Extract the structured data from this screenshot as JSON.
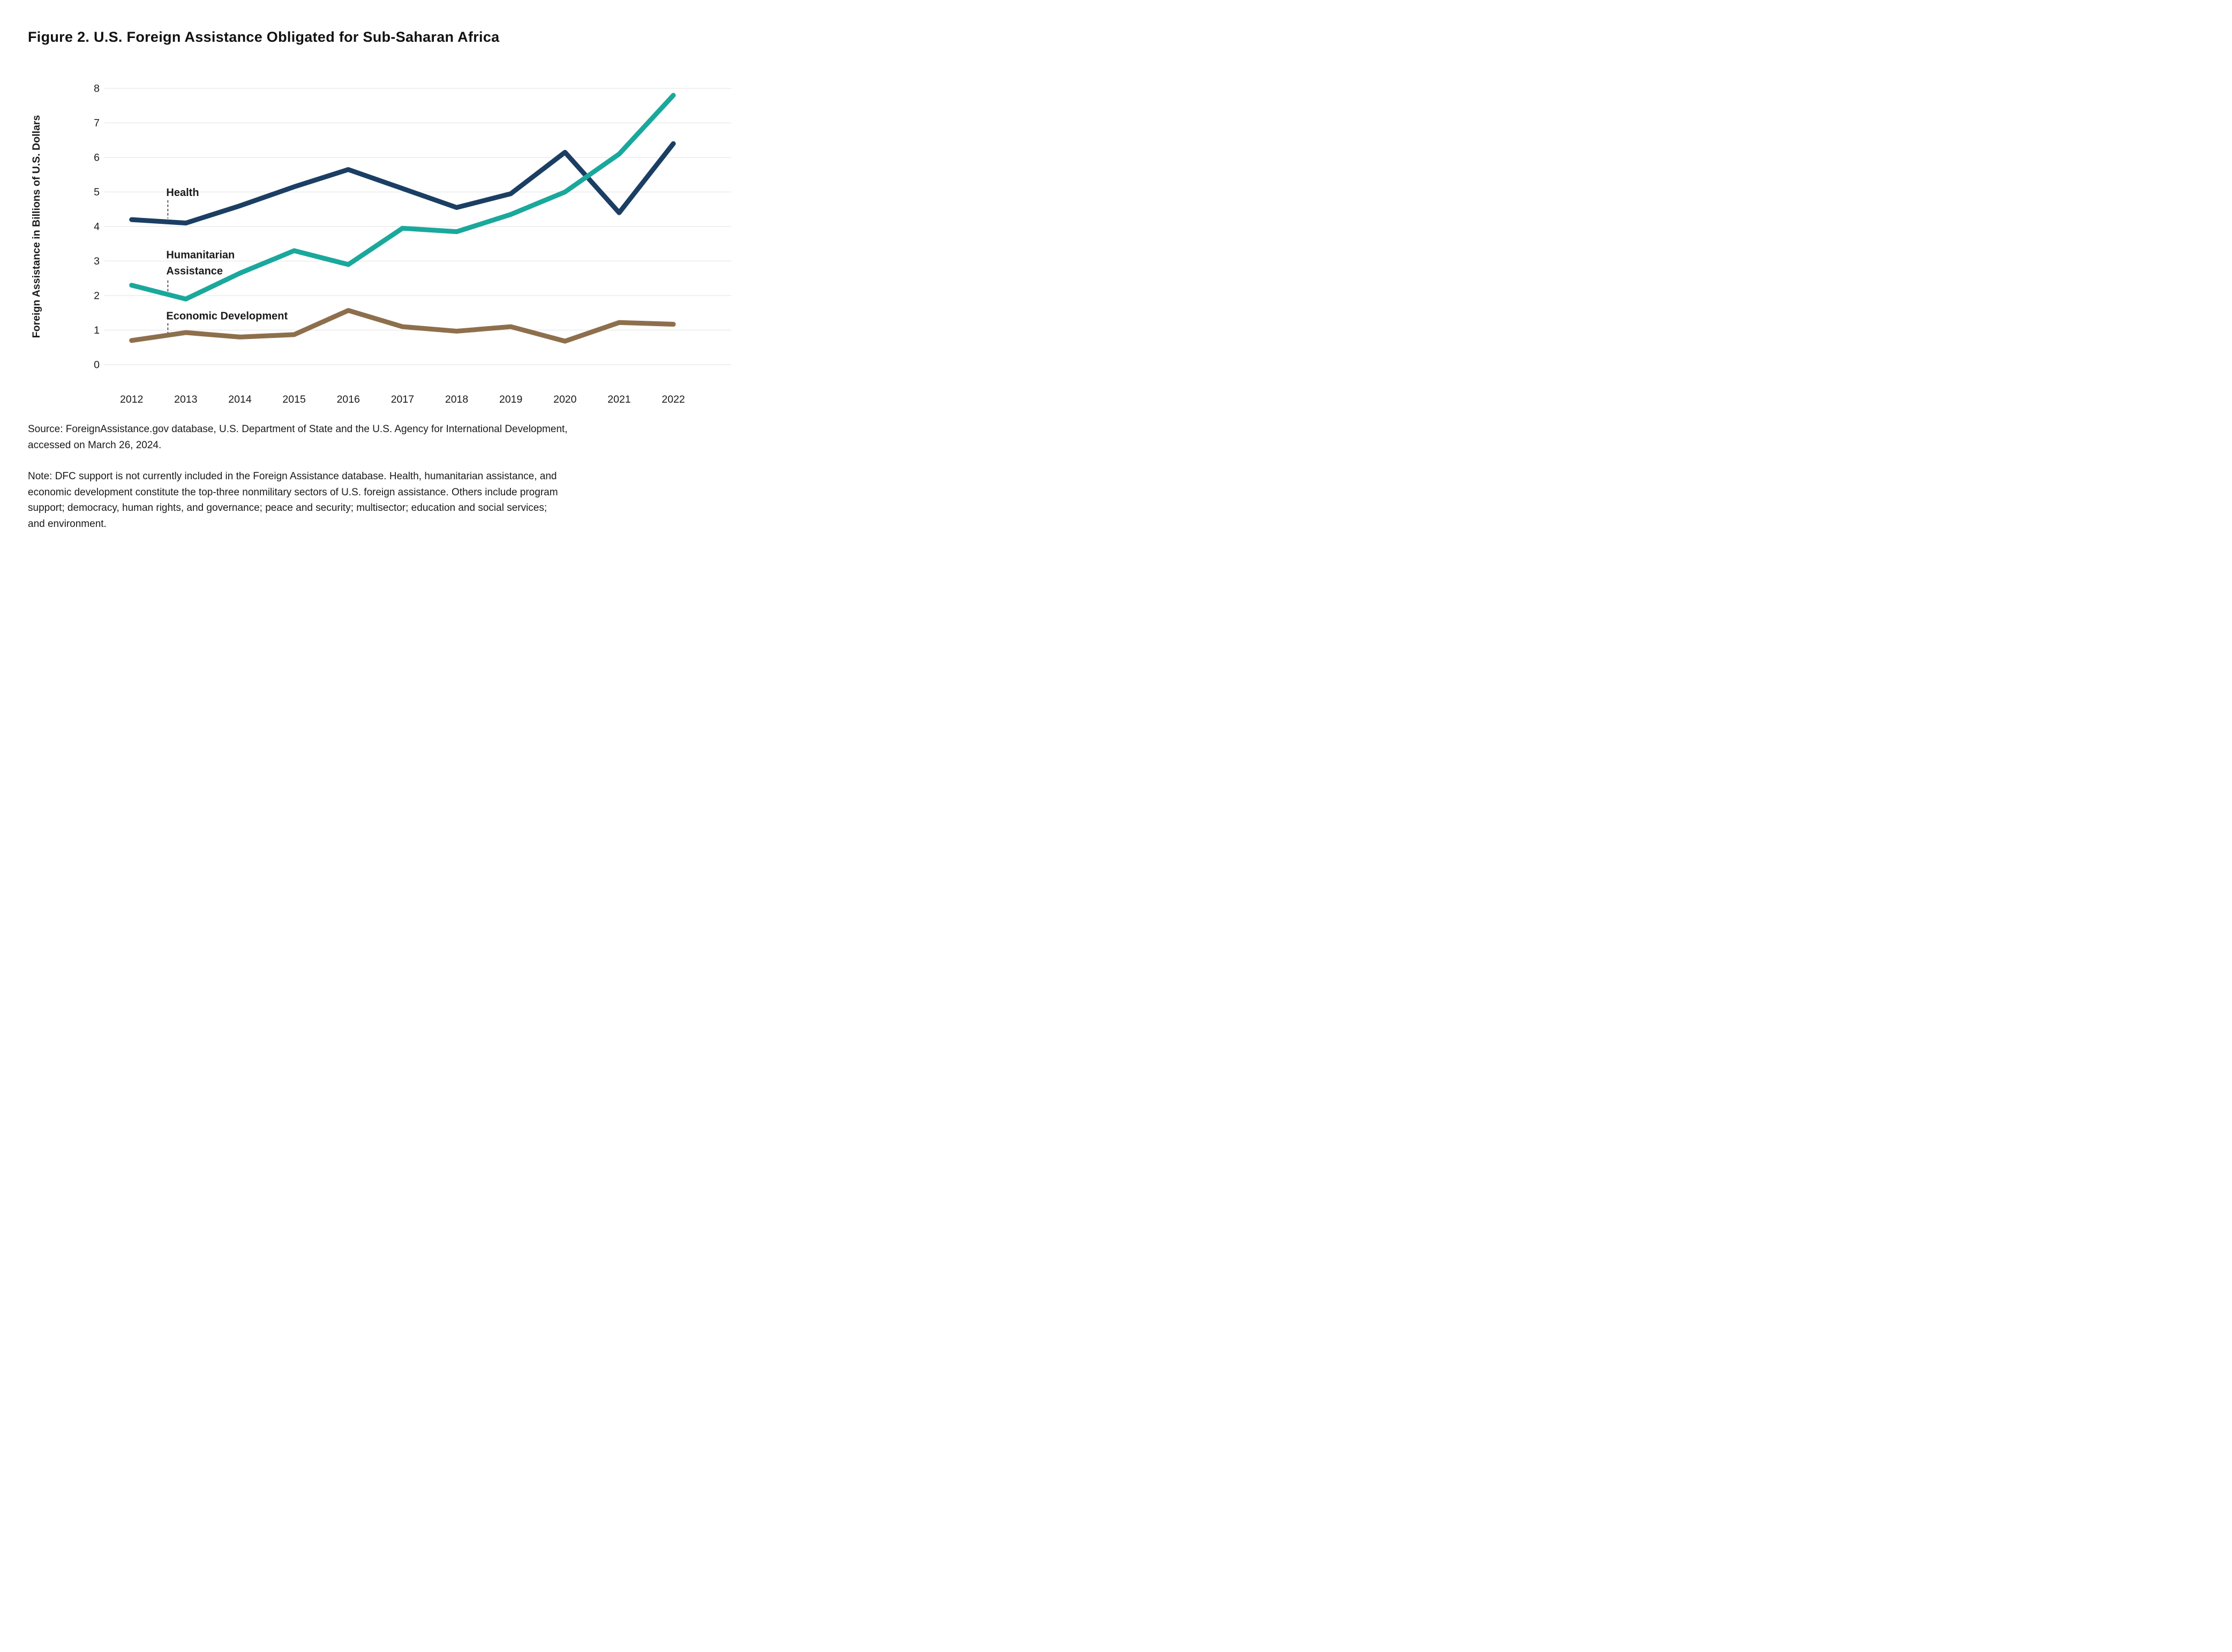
{
  "figure_title": "Figure 2. U.S. Foreign Assistance Obligated for Sub-Saharan Africa",
  "chart_data": {
    "type": "line",
    "title": "Figure 2. U.S. Foreign Assistance Obligated for Sub-Saharan Africa",
    "xlabel": "",
    "ylabel": "Foreign Assistance in Billions of U.S. Dollars",
    "x": [
      2012,
      2013,
      2014,
      2015,
      2016,
      2017,
      2018,
      2019,
      2020,
      2021,
      2022
    ],
    "x_tick_labels": [
      "2012",
      "2013",
      "2014",
      "2015",
      "2016",
      "2017",
      "2018",
      "2019",
      "2020",
      "2021",
      "2022"
    ],
    "ylim": [
      0,
      8
    ],
    "yticks": [
      0,
      1,
      2,
      3,
      4,
      5,
      6,
      7,
      8
    ],
    "grid": "horizontal-only",
    "legend_position": "inline-annotations",
    "series": [
      {
        "name": "Health",
        "color": "#1B3E63",
        "values": [
          4.2,
          4.1,
          4.6,
          5.15,
          5.65,
          5.1,
          4.55,
          4.95,
          6.15,
          4.4,
          6.4
        ]
      },
      {
        "name": "Humanitarian Assistance",
        "color": "#1AA89C",
        "values": [
          2.3,
          1.9,
          2.65,
          3.3,
          2.9,
          3.95,
          3.85,
          4.35,
          5.0,
          6.1,
          7.8
        ]
      },
      {
        "name": "Economic Development",
        "color": "#8E6F4C",
        "values": [
          0.7,
          0.93,
          0.8,
          0.87,
          1.57,
          1.1,
          0.97,
          1.1,
          0.68,
          1.22,
          1.17
        ]
      }
    ],
    "annotations": [
      {
        "series": "Health",
        "label_lines": [
          "Health"
        ],
        "x": 2012.64,
        "line_y": [
          4.88
        ],
        "leader_top": 4.76,
        "leader_bottom": 4.23
      },
      {
        "series": "Humanitarian Assistance",
        "label_lines": [
          "Humanitarian",
          "Assistance"
        ],
        "x": 2012.64,
        "line_y": [
          3.08,
          2.61
        ],
        "leader_top": 2.44,
        "leader_bottom": 2.1
      },
      {
        "series": "Economic Development",
        "label_lines": [
          "Economic Development"
        ],
        "x": 2012.64,
        "line_y": [
          1.31
        ],
        "leader_top": 1.2,
        "leader_bottom": 0.92
      }
    ]
  },
  "source_lines": [
    "Source: ForeignAssistance.gov database, U.S. Department of State and the U.S. Agency for International Development,",
    "accessed on March 26, 2024."
  ],
  "note_lines": [
    "Note: DFC support is not currently included in the Foreign Assistance database. Health, humanitarian assistance, and",
    "economic development constitute the top-three nonmilitary sectors of U.S. foreign assistance. Others include program",
    "support; democracy, human rights, and governance; peace and security; multisector; education and social services;",
    "and environment.",
    ""
  ],
  "colors": {
    "health_line": "#1B3E63",
    "humanitarian_line": "#1AA89C",
    "economic_line": "#8E6F4C",
    "gridline": "#EBEBEB",
    "text": "#1A1A1A",
    "background": "#FFFFFF"
  }
}
